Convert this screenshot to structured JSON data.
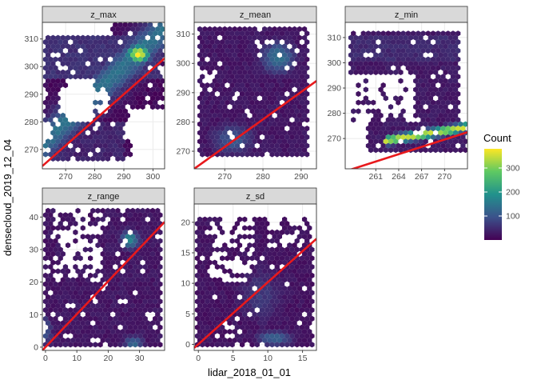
{
  "chart_data": {
    "type": "hexbin-facet",
    "xlabel": "lidar_2018_01_01",
    "ylabel": "densecloud_2019_12_04",
    "legend": {
      "title": "Count",
      "placement": "right",
      "ticks": [
        100,
        200,
        300
      ],
      "range": [
        0,
        380
      ]
    },
    "colors": {
      "low": "#440154",
      "mid": "#21918c",
      "high": "#fde725",
      "fit_line": "#e8191c",
      "strip": "#d9d9d9",
      "panel_border": "#333333",
      "grid": "#ebebeb"
    },
    "panels": [
      {
        "title": "z_max",
        "xlim": [
          262,
          304
        ],
        "ylim": [
          263,
          316
        ],
        "xticks": [
          270,
          280,
          290,
          300
        ],
        "yticks": [
          270,
          280,
          290,
          300,
          310
        ],
        "fit": [
          [
            262,
            264
          ],
          [
            304,
            303
          ]
        ]
      },
      {
        "title": "z_mean",
        "xlim": [
          262,
          294
        ],
        "ylim": [
          264,
          314
        ],
        "xticks": [
          270,
          280,
          290
        ],
        "yticks": [
          270,
          280,
          290,
          300,
          310
        ],
        "fit": [
          [
            262,
            264
          ],
          [
            294,
            294
          ]
        ]
      },
      {
        "title": "z_min",
        "xlim": [
          257,
          273
        ],
        "ylim": [
          258,
          316
        ],
        "xticks": [
          261,
          264,
          267,
          270
        ],
        "yticks": [
          270,
          280,
          290,
          300,
          310
        ],
        "fit": [
          [
            257,
            257
          ],
          [
            273,
            272.5
          ]
        ]
      },
      {
        "title": "z_range",
        "xlim": [
          -1,
          38
        ],
        "ylim": [
          -1,
          44
        ],
        "xticks": [
          0,
          10,
          20,
          30
        ],
        "yticks": [
          0,
          10,
          20,
          30,
          40
        ],
        "fit": [
          [
            -1,
            -1
          ],
          [
            38,
            38.5
          ]
        ]
      },
      {
        "title": "z_sd",
        "xlim": [
          -0.6,
          17
        ],
        "ylim": [
          -1,
          23
        ],
        "xticks": [
          0,
          5,
          10,
          15
        ],
        "yticks": [
          0,
          5,
          10,
          15,
          20
        ],
        "fit": [
          [
            -0.6,
            -0.6
          ],
          [
            17,
            17.3
          ]
        ]
      }
    ]
  }
}
